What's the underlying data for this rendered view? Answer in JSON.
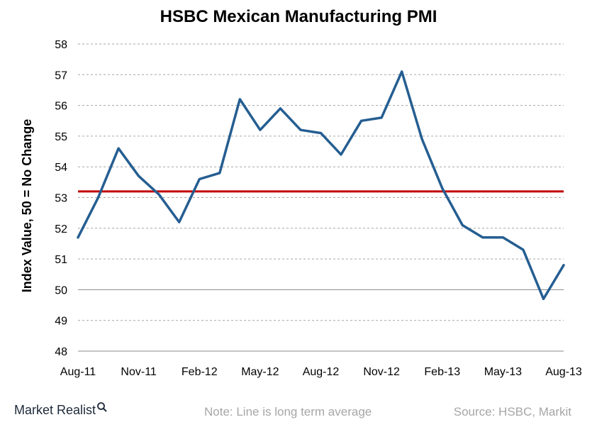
{
  "chart_data": {
    "type": "line",
    "title": "HSBC Mexican Manufacturing PMI",
    "ylabel": "Index Value, 50 = No Change",
    "xlabel": "",
    "ylim": [
      48,
      58
    ],
    "yticks": [
      48,
      49,
      50,
      51,
      52,
      53,
      54,
      55,
      56,
      57,
      58
    ],
    "x_tick_labels": [
      "Aug-11",
      "Nov-11",
      "Feb-12",
      "May-12",
      "Aug-12",
      "Nov-12",
      "Feb-13",
      "May-13",
      "Aug-13"
    ],
    "grid": "horizontal dashed",
    "series": [
      {
        "x": [
          "Aug-11",
          "Sep-11",
          "Oct-11",
          "Nov-11",
          "Dec-11",
          "Jan-12",
          "Feb-12",
          "Mar-12",
          "Apr-12",
          "May-12",
          "Jun-12",
          "Jul-12",
          "Aug-12",
          "Sep-12",
          "Oct-12",
          "Nov-12",
          "Dec-12",
          "Jan-13",
          "Feb-13",
          "Mar-13",
          "Apr-13",
          "May-13",
          "Jun-13",
          "Jul-13",
          "Aug-13"
        ],
        "values": [
          51.7,
          53.0,
          54.6,
          53.7,
          53.1,
          52.2,
          53.6,
          53.8,
          56.2,
          55.2,
          55.9,
          55.2,
          55.1,
          54.4,
          55.5,
          55.6,
          57.1,
          54.9,
          53.3,
          52.1,
          51.7,
          51.7,
          51.3,
          49.7,
          50.8
        ],
        "color": "#255e91"
      }
    ],
    "reference_line": {
      "value": 53.2,
      "color": "#c00000"
    },
    "baseline_value": 50
  },
  "footer": {
    "brand": "Market Realist",
    "note": "Note: Line is long term average",
    "source": "Source: HSBC, Markit"
  }
}
